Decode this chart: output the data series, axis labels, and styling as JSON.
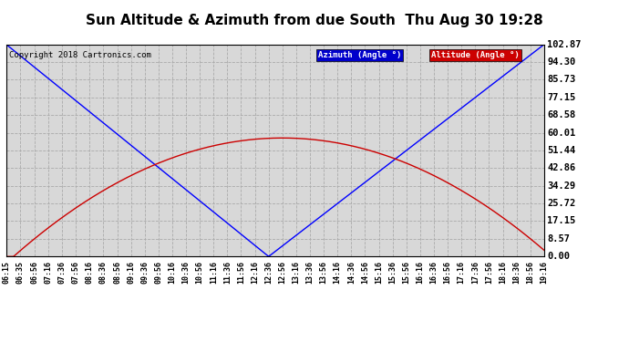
{
  "title": "Sun Altitude & Azimuth from due South  Thu Aug 30 19:28",
  "copyright": "Copyright 2018 Cartronics.com",
  "yticks": [
    0.0,
    8.57,
    17.15,
    25.72,
    34.29,
    42.86,
    51.44,
    60.01,
    68.58,
    77.15,
    85.73,
    94.3,
    102.87
  ],
  "ymax": 102.87,
  "ymin": 0.0,
  "azimuth_color": "#0000ff",
  "altitude_color": "#cc0000",
  "background_color": "#ffffff",
  "grid_color": "#aaaaaa",
  "plot_bg_color": "#d8d8d8",
  "legend_azimuth_bg": "#0000cc",
  "legend_altitude_bg": "#cc0000",
  "solar_noon_time": "12:36",
  "peak_altitude": 57.5,
  "peak_time": "12:56",
  "xtick_labels": [
    "06:15",
    "06:35",
    "06:56",
    "07:16",
    "07:36",
    "07:56",
    "08:16",
    "08:36",
    "08:56",
    "09:16",
    "09:36",
    "09:56",
    "10:16",
    "10:36",
    "10:56",
    "11:16",
    "11:36",
    "11:56",
    "12:16",
    "12:36",
    "12:56",
    "13:16",
    "13:36",
    "13:56",
    "14:16",
    "14:36",
    "14:56",
    "15:16",
    "15:36",
    "15:56",
    "16:16",
    "16:36",
    "16:56",
    "17:16",
    "17:36",
    "17:56",
    "18:16",
    "18:36",
    "18:56",
    "19:16"
  ]
}
